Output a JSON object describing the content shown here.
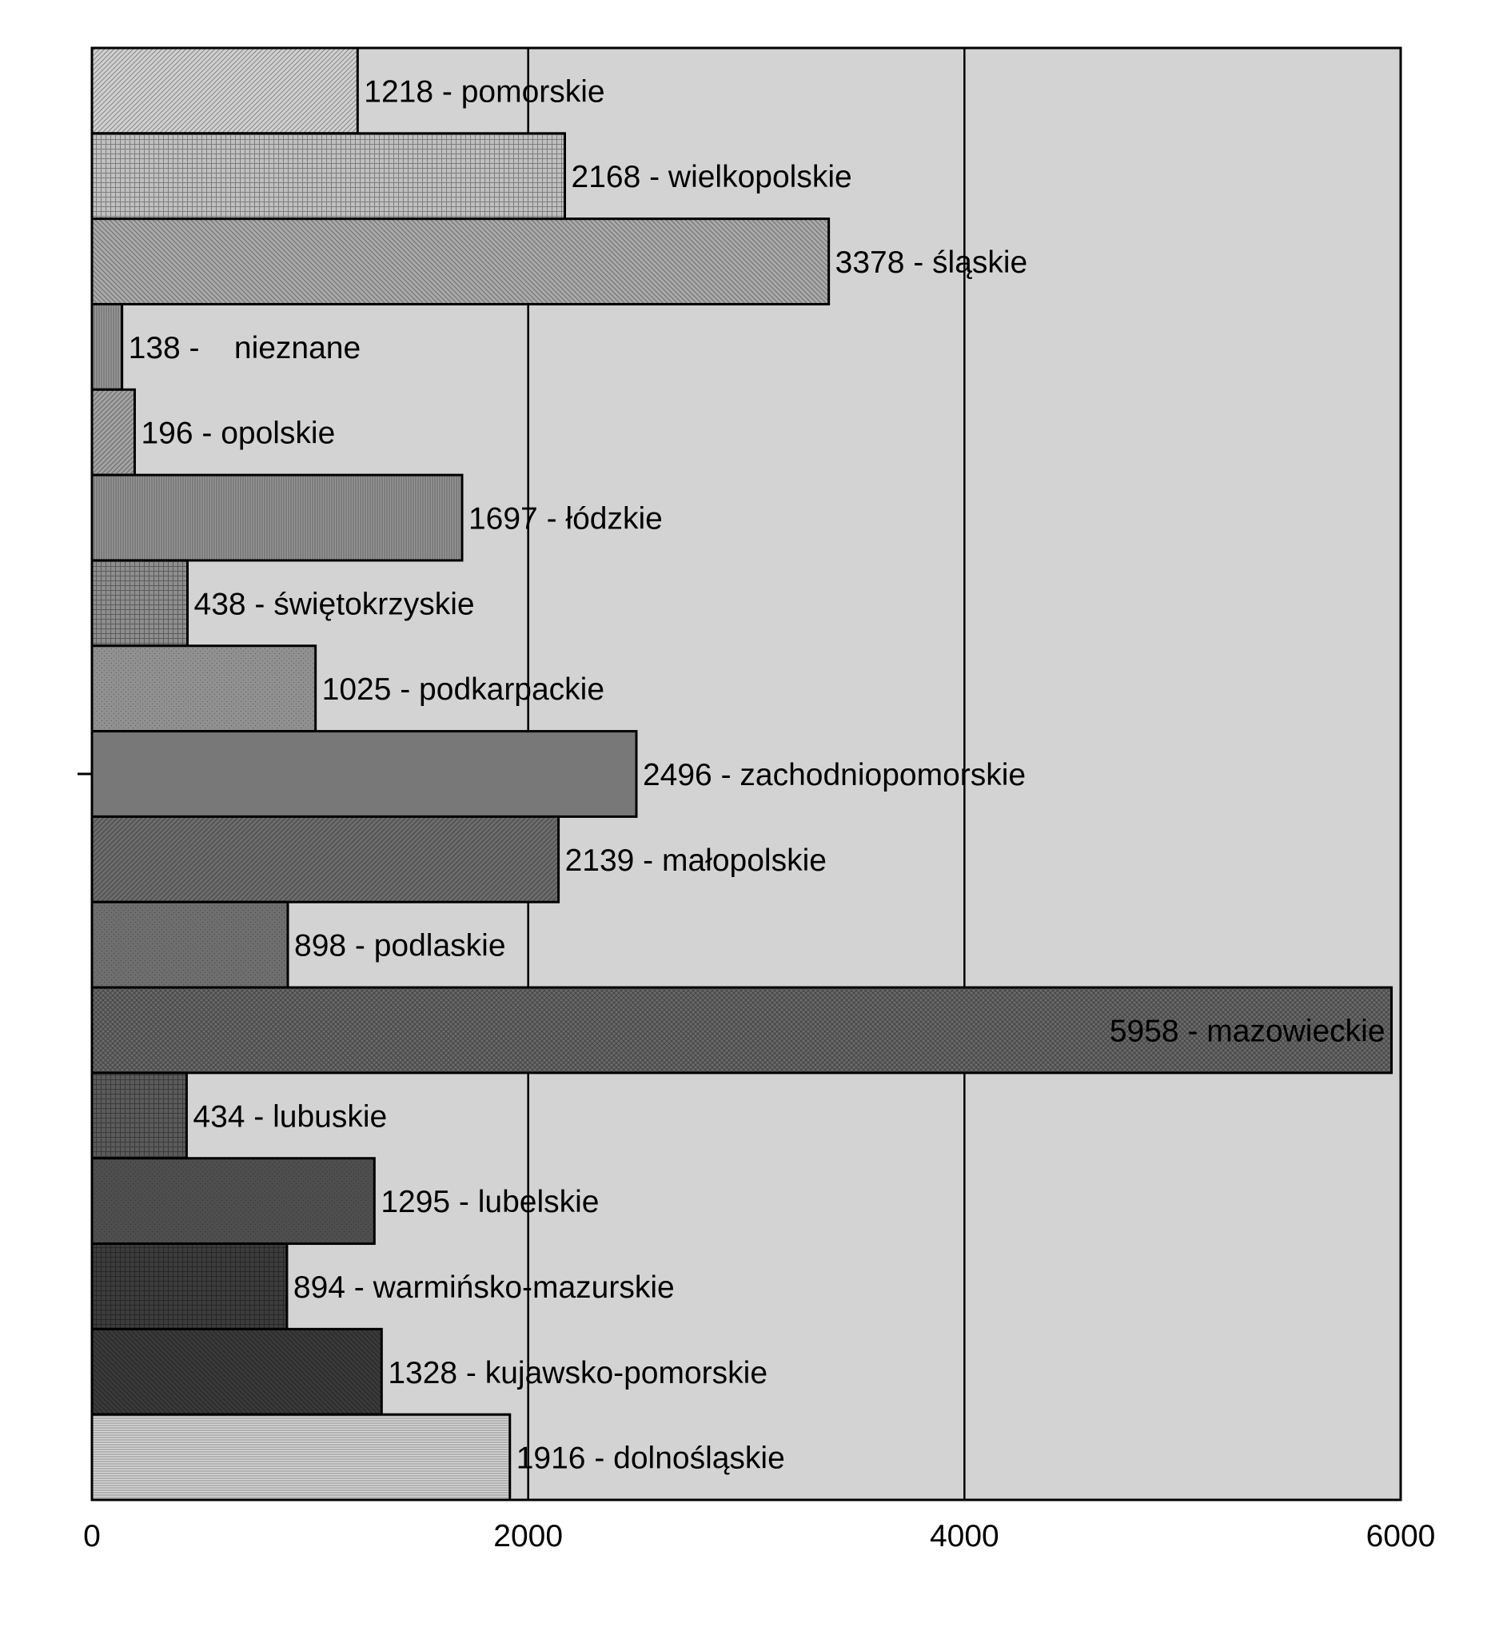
{
  "chart_data": {
    "type": "bar",
    "orientation": "horizontal",
    "categories": [
      "pomorskie",
      "wielkopolskie",
      "śląskie",
      "nieznane",
      "opolskie",
      "łódzkie",
      "świętokrzyskie",
      "podkarpackie",
      "zachodniopomorskie",
      "małopolskie",
      "podlaskie",
      "mazowieckie",
      "lubuskie",
      "lubelskie",
      "warmińsko-mazurskie",
      "kujawsko-pomorskie",
      "dolnośląskie"
    ],
    "values": [
      1218,
      2168,
      3378,
      138,
      196,
      1697,
      438,
      1025,
      2496,
      2139,
      898,
      5958,
      434,
      1295,
      894,
      1328,
      1916
    ],
    "bar_labels": [
      "1218 - pomorskie",
      "2168 - wielkopolskie",
      "3378 - śląskie",
      "138 -    nieznane",
      "196 - opolskie",
      "1697 - łódzkie",
      "438 - świętokrzyskie",
      "1025 - podkarpackie",
      "2496 - zachodniopomorskie",
      "2139 - małopolskie",
      "898 - podlaskie",
      "5958 - mazowieckie",
      "434 - lubuskie",
      "1295 - lubelskie",
      "894 - warmińsko-mazurskie",
      "1328 - kujawsko-pomorskie",
      "1916 - dolnośląskie"
    ],
    "xlim": [
      0,
      6000
    ],
    "xticks": [
      0,
      2000,
      4000,
      6000
    ],
    "xtick_labels": [
      "0",
      "2000",
      "4000",
      "6000"
    ],
    "grid": "vertical",
    "legend": "none",
    "title": "",
    "xlabel": "",
    "ylabel": "",
    "colors": {
      "plot_background": "#d3d3d3",
      "bar_fills": [
        "#d0d0d0",
        "#c0c0c0",
        "#a9a9a9",
        "#9a9a9a",
        "#a2a2a2",
        "#979797",
        "#8e8e8e",
        "#909090",
        "#787878",
        "#6c6c6c",
        "#6e6e6e",
        "#6a6a6a",
        "#5b5b5b",
        "#4e4e4e",
        "#3c3c3c",
        "#3a3a3a",
        "#d8d8d8"
      ],
      "bar_patterns": [
        "diag-right",
        "grid",
        "diag-left",
        "vertical",
        "diag-right",
        "vertical",
        "grid",
        "dots",
        "solid",
        "diag-right",
        "dots",
        "cross",
        "grid",
        "dots",
        "grid",
        "diag-left",
        "horizontal"
      ]
    }
  }
}
